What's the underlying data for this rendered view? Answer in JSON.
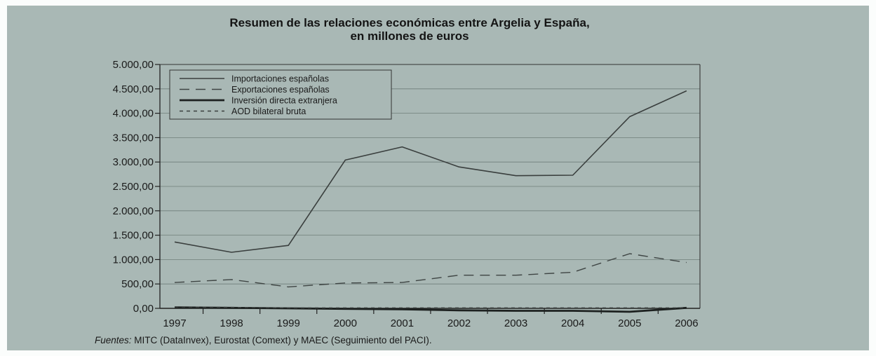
{
  "chart_data": {
    "type": "line",
    "title_line1": "Resumen de las relaciones económicas entre Argelia y España,",
    "title_line2": "en millones de euros",
    "x": [
      "1997",
      "1998",
      "1999",
      "2000",
      "2001",
      "2002",
      "2003",
      "2004",
      "2005",
      "2006"
    ],
    "y_ticks": [
      "0,00",
      "500,00",
      "1.000,00",
      "1.500,00",
      "2.000,00",
      "2.500,00",
      "3.000,00",
      "3.500,00",
      "4.000,00",
      "4.500,00",
      "5.000,00"
    ],
    "ylim": [
      0,
      5000
    ],
    "grid": true,
    "legend_position": "top-left",
    "series": [
      {
        "name": "Importaciones españolas",
        "style": "solid-thin",
        "values": [
          1360,
          1150,
          1290,
          3040,
          3310,
          2900,
          2720,
          2730,
          3930,
          4460
        ]
      },
      {
        "name": "Exportaciones españolas",
        "style": "long-dash",
        "values": [
          530,
          590,
          440,
          520,
          530,
          680,
          680,
          740,
          1120,
          940
        ]
      },
      {
        "name": "Inversión directa extranjera",
        "style": "solid-thick",
        "values": [
          20,
          10,
          0,
          -10,
          -20,
          -40,
          -50,
          -50,
          -70,
          10
        ]
      },
      {
        "name": "AOD bilateral bruta",
        "style": "short-dash",
        "values": [
          30,
          20,
          10,
          10,
          10,
          10,
          10,
          10,
          10,
          10
        ]
      }
    ],
    "source_label": "Fuentes:",
    "source_text": " MITC (DataInvex), Eurostat (Comext) y MAEC (Seguimiento del PACI)."
  }
}
